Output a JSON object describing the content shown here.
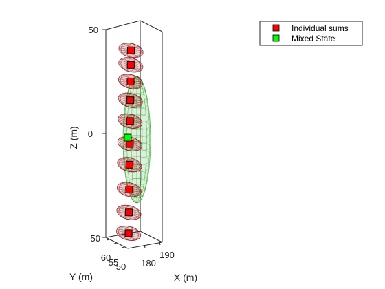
{
  "chart_data": {
    "type": "scatter",
    "view": "3d",
    "xlabel": "X (m)",
    "ylabel": "Y (m)",
    "zlabel": "Z (m)",
    "x_ticks": [
      "180",
      "190"
    ],
    "y_ticks": [
      "50",
      "55",
      "60"
    ],
    "z_ticks": [
      "-50",
      "0",
      "50"
    ],
    "zlim": [
      -50,
      50
    ],
    "legend_position": "top-right",
    "series": [
      {
        "name": "Individual sums",
        "marker": "square",
        "color": "#ff0000",
        "z": [
          40,
          33,
          25,
          16,
          6,
          -5,
          -15,
          -27,
          -38,
          -48
        ]
      },
      {
        "name": "Mixed State",
        "marker": "square",
        "color": "#00ff00",
        "z": [
          -2
        ]
      }
    ],
    "individual_ellipsoid_color": "#8b1a1a",
    "mixed_ellipsoid_color": "#1c9e1c"
  }
}
